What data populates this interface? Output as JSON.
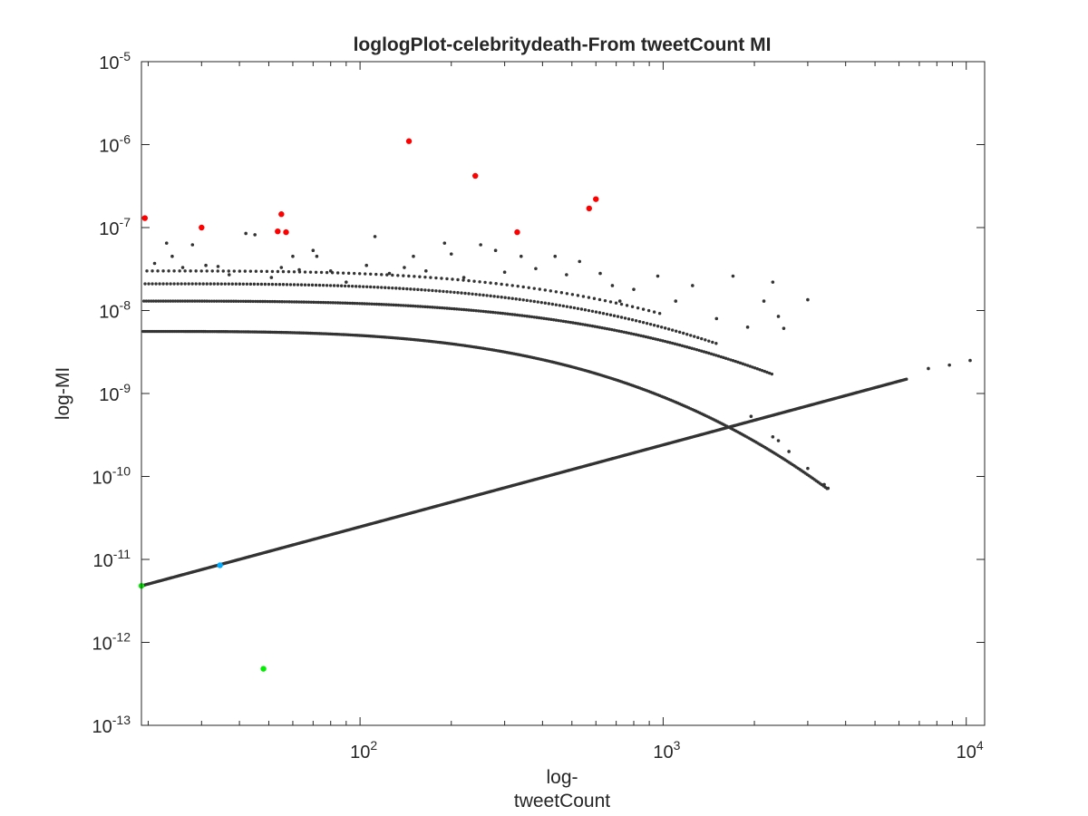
{
  "chart_data": {
    "type": "scatter",
    "title": "loglogPlot-celebritydeath-From tweetCount MI",
    "xlabel_lines": [
      "log-",
      "tweetCount"
    ],
    "ylabel": "log-MI",
    "x_scale": "log",
    "y_scale": "log",
    "xlim": [
      19,
      11500
    ],
    "ylim": [
      1e-13,
      1e-05
    ],
    "x_ticks": [
      {
        "value": 100,
        "base": "10",
        "exp": "2"
      },
      {
        "value": 1000,
        "base": "10",
        "exp": "3"
      },
      {
        "value": 10000,
        "base": "10",
        "exp": "4"
      }
    ],
    "y_ticks": [
      {
        "value": 1e-05,
        "base": "10",
        "exp": "-5"
      },
      {
        "value": 1e-06,
        "base": "10",
        "exp": "-6"
      },
      {
        "value": 1e-07,
        "base": "10",
        "exp": "-7"
      },
      {
        "value": 1e-08,
        "base": "10",
        "exp": "-8"
      },
      {
        "value": 1e-09,
        "base": "10",
        "exp": "-9"
      },
      {
        "value": 1e-10,
        "base": "10",
        "exp": "-10"
      },
      {
        "value": 1e-11,
        "base": "10",
        "exp": "-11"
      },
      {
        "value": 1e-12,
        "base": "10",
        "exp": "-12"
      },
      {
        "value": 1e-13,
        "base": "10",
        "exp": "-13"
      }
    ],
    "grid": false,
    "box": true,
    "colors": {
      "background": "#ffffff",
      "axes": "#262626",
      "dark_points": "#333333",
      "red_points": "#ff0000",
      "green_points": "#00ee00",
      "blue_points": "#00aaff"
    },
    "series": [
      {
        "color": "red",
        "points": [
          [
            19.5,
            1.3e-07
          ],
          [
            30,
            1e-07
          ],
          [
            53.5,
            9e-08
          ],
          [
            55,
            1.45e-07
          ],
          [
            57,
            8.8e-08
          ],
          [
            145,
            1.1e-06
          ],
          [
            240,
            4.2e-07
          ],
          [
            330,
            8.8e-08
          ],
          [
            570,
            1.7e-07
          ],
          [
            600,
            2.2e-07
          ]
        ]
      },
      {
        "color": "green",
        "points": [
          [
            19,
            4.8e-12
          ],
          [
            48,
            4.8e-13
          ]
        ]
      },
      {
        "color": "blue",
        "points": [
          [
            34.5,
            8.5e-12
          ]
        ]
      },
      {
        "color": "dark",
        "curves": [
          {
            "x_start": 19,
            "x_end": 6400,
            "y_at_start": 4.8e-12,
            "y_at_end": 1.5e-09,
            "step": 0.004
          },
          {
            "x_start": 19,
            "x_end": 3500,
            "y_at_start": 5.6e-09,
            "y_at_end": 7e-11,
            "shape": "concave-decay",
            "step": 0.006
          },
          {
            "x_start": 19,
            "x_end": 2300,
            "y_at_start": 1.3e-08,
            "y_at_end": 1.7e-09,
            "shape": "concave-decay",
            "step": 0.008
          },
          {
            "x_start": 19,
            "x_end": 1500,
            "y_at_start": 2.1e-08,
            "y_at_end": 4e-09,
            "shape": "concave-decay",
            "step": 0.012
          },
          {
            "x_start": 19,
            "x_end": 1000,
            "y_at_start": 3e-08,
            "y_at_end": 9e-09,
            "shape": "concave-decay",
            "step": 0.018
          }
        ],
        "points": [
          [
            21,
            3.7e-08
          ],
          [
            23,
            6.5e-08
          ],
          [
            24,
            4.5e-08
          ],
          [
            26,
            3.3e-08
          ],
          [
            28,
            6.2e-08
          ],
          [
            31,
            3.5e-08
          ],
          [
            34,
            3.4e-08
          ],
          [
            37,
            2.7e-08
          ],
          [
            42,
            8.5e-08
          ],
          [
            45,
            8.2e-08
          ],
          [
            51,
            2.5e-08
          ],
          [
            55,
            3.3e-08
          ],
          [
            60,
            4.5e-08
          ],
          [
            63,
            3.1e-08
          ],
          [
            70,
            5.3e-08
          ],
          [
            72,
            4.5e-08
          ],
          [
            80,
            3e-08
          ],
          [
            90,
            2.2e-08
          ],
          [
            105,
            3.5e-08
          ],
          [
            112,
            7.8e-08
          ],
          [
            125,
            2.8e-08
          ],
          [
            140,
            3.3e-08
          ],
          [
            150,
            4.5e-08
          ],
          [
            165,
            3e-08
          ],
          [
            190,
            6.5e-08
          ],
          [
            200,
            4.8e-08
          ],
          [
            220,
            2.5e-08
          ],
          [
            250,
            6.2e-08
          ],
          [
            280,
            5.3e-08
          ],
          [
            300,
            2.9e-08
          ],
          [
            340,
            4.5e-08
          ],
          [
            380,
            3.2e-08
          ],
          [
            440,
            4.5e-08
          ],
          [
            480,
            2.7e-08
          ],
          [
            530,
            3.9e-08
          ],
          [
            620,
            2.8e-08
          ],
          [
            680,
            2e-08
          ],
          [
            720,
            1.3e-08
          ],
          [
            800,
            1.8e-08
          ],
          [
            960,
            2.6e-08
          ],
          [
            1100,
            1.3e-08
          ],
          [
            1250,
            2e-08
          ],
          [
            1500,
            8e-09
          ],
          [
            1700,
            2.6e-08
          ],
          [
            1900,
            6.3e-09
          ],
          [
            2150,
            1.3e-08
          ],
          [
            2300,
            2.2e-08
          ],
          [
            2400,
            8.5e-09
          ],
          [
            2500,
            6.1e-09
          ],
          [
            3000,
            1.35e-08
          ],
          [
            1950,
            5.3e-10
          ],
          [
            2300,
            3e-10
          ],
          [
            2400,
            2.7e-10
          ],
          [
            2600,
            2e-10
          ],
          [
            3000,
            1.25e-10
          ],
          [
            3400,
            8e-11
          ],
          [
            3500,
            7.2e-11
          ],
          [
            7500,
            2e-09
          ],
          [
            8800,
            2.2e-09
          ],
          [
            10300,
            2.5e-09
          ]
        ]
      }
    ]
  }
}
